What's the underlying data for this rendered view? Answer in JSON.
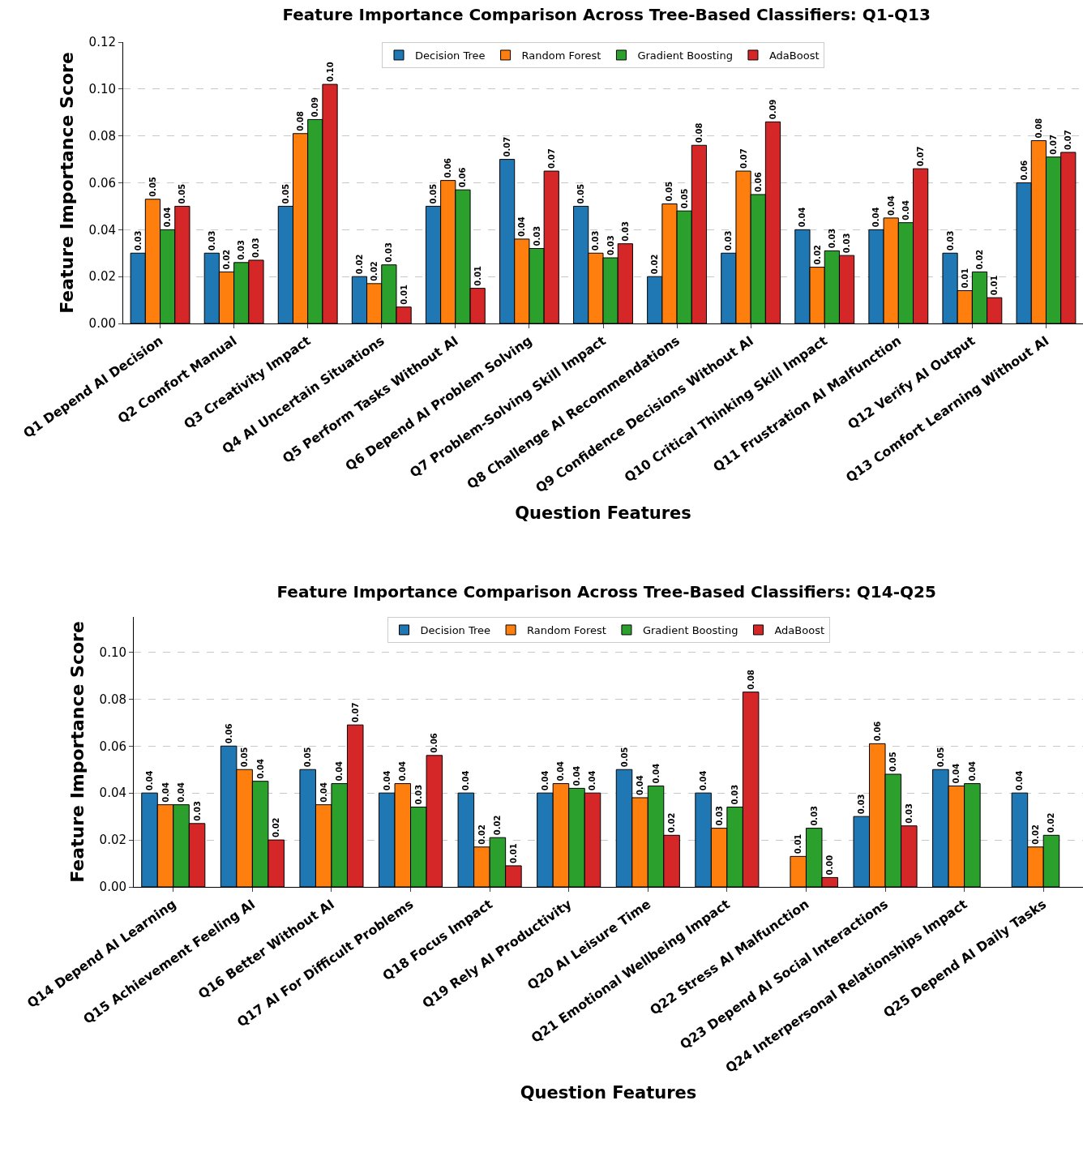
{
  "chart_data": [
    {
      "type": "bar",
      "title": "Feature Importance Comparison Across Tree-Based Classifiers: Q1-Q13",
      "xlabel": "Question Features",
      "ylabel": "Feature Importance Score",
      "categories": [
        "Q1 Depend AI Decision",
        "Q2 Comfort Manual",
        "Q3 Creativity Impact",
        "Q4 AI Uncertain Situations",
        "Q5 Perform Tasks Without AI",
        "Q6 Depend AI Problem Solving",
        "Q7 Problem-Solving Skill Impact",
        "Q8 Challenge AI Recommendations",
        "Q9 Confidence Decisions Without AI",
        "Q10 Critical Thinking Skill Impact",
        "Q11 Frustration AI Malfunction",
        "Q12 Verify AI Output",
        "Q13 Comfort Learning Without AI"
      ],
      "series": [
        {
          "name": "Decision Tree",
          "color": "#1f77b4",
          "values": [
            0.03,
            0.03,
            0.05,
            0.02,
            0.05,
            0.07,
            0.05,
            0.02,
            0.03,
            0.04,
            0.04,
            0.03,
            0.06
          ],
          "value_labels": [
            "0.03",
            "0.03",
            "0.05",
            "0.02",
            "0.05",
            "0.07",
            "0.05",
            "0.02",
            "0.03",
            "0.04",
            "0.04",
            "0.03",
            "0.06"
          ]
        },
        {
          "name": "Random Forest",
          "color": "#ff7f0e",
          "values": [
            0.053,
            0.022,
            0.081,
            0.017,
            0.061,
            0.036,
            0.03,
            0.051,
            0.065,
            0.024,
            0.045,
            0.014,
            0.078
          ],
          "value_labels": [
            "0.05",
            "0.02",
            "0.08",
            "0.02",
            "0.06",
            "0.04",
            "0.03",
            "0.05",
            "0.07",
            "0.02",
            "0.04",
            "0.01",
            "0.08"
          ]
        },
        {
          "name": "Gradient Boosting",
          "color": "#2ca02c",
          "values": [
            0.04,
            0.026,
            0.087,
            0.025,
            0.057,
            0.032,
            0.028,
            0.048,
            0.055,
            0.031,
            0.043,
            0.022,
            0.071
          ],
          "value_labels": [
            "0.04",
            "0.03",
            "0.09",
            "0.03",
            "0.06",
            "0.03",
            "0.03",
            "0.05",
            "0.06",
            "0.03",
            "0.04",
            "0.02",
            "0.07"
          ]
        },
        {
          "name": "AdaBoost",
          "color": "#d62728",
          "values": [
            0.05,
            0.027,
            0.102,
            0.007,
            0.015,
            0.065,
            0.034,
            0.076,
            0.086,
            0.029,
            0.066,
            0.011,
            0.073
          ],
          "value_labels": [
            "0.05",
            "0.03",
            "0.10",
            "0.01",
            "0.01",
            "0.07",
            "0.03",
            "0.08",
            "0.09",
            "0.03",
            "0.07",
            "0.01",
            "0.07"
          ]
        }
      ],
      "ylim": [
        0,
        0.12
      ],
      "yticks": [
        {
          "value": 0,
          "label": "0.00"
        },
        {
          "value": 0.02,
          "label": "0.02"
        },
        {
          "value": 0.04,
          "label": "0.04"
        },
        {
          "value": 0.06,
          "label": "0.06"
        },
        {
          "value": 0.08,
          "label": "0.08"
        },
        {
          "value": 0.1,
          "label": "0.10"
        },
        {
          "value": 0.12,
          "label": "0.12"
        }
      ],
      "grid": "y",
      "legend": "top"
    },
    {
      "type": "bar",
      "title": "Feature Importance Comparison Across Tree-Based Classifiers: Q14-Q25",
      "xlabel": "Question Features",
      "ylabel": "Feature Importance Score",
      "categories": [
        "Q14 Depend AI Learning",
        "Q15 Achievement Feeling AI",
        "Q16 Better Without AI",
        "Q17 AI For Difficult Problems",
        "Q18 Focus Impact",
        "Q19 Rely AI Productivity",
        "Q20 AI Leisure Time",
        "Q21 Emotional Wellbeing Impact",
        "Q22 Stress AI Malfunction",
        "Q23 Depend AI Social Interactions",
        "Q24 Interpersonal Relationships Impact",
        "Q25 Depend AI Daily Tasks"
      ],
      "series": [
        {
          "name": "Decision Tree",
          "color": "#1f77b4",
          "values": [
            0.04,
            0.06,
            0.05,
            0.04,
            0.04,
            0.04,
            0.05,
            0.04,
            null,
            0.03,
            0.05,
            0.04
          ],
          "value_labels": [
            "0.04",
            "0.06",
            "0.05",
            "0.04",
            "0.04",
            "0.04",
            "0.05",
            "0.04",
            null,
            "0.03",
            "0.05",
            "0.04"
          ]
        },
        {
          "name": "Random Forest",
          "color": "#ff7f0e",
          "values": [
            0.035,
            0.05,
            0.035,
            0.044,
            0.017,
            0.044,
            0.038,
            0.025,
            0.013,
            0.061,
            0.043,
            0.017
          ],
          "value_labels": [
            "0.04",
            "0.05",
            "0.04",
            "0.04",
            "0.02",
            "0.04",
            "0.04",
            "0.03",
            "0.01",
            "0.06",
            "0.04",
            "0.02"
          ]
        },
        {
          "name": "Gradient Boosting",
          "color": "#2ca02c",
          "values": [
            0.035,
            0.045,
            0.044,
            0.034,
            0.021,
            0.042,
            0.043,
            0.034,
            0.025,
            0.048,
            0.044,
            0.022
          ],
          "value_labels": [
            "0.04",
            "0.04",
            "0.04",
            "0.03",
            "0.02",
            "0.04",
            "0.04",
            "0.03",
            "0.03",
            "0.05",
            "0.04",
            "0.02"
          ]
        },
        {
          "name": "AdaBoost",
          "color": "#d62728",
          "values": [
            0.027,
            0.02,
            0.069,
            0.056,
            0.009,
            0.04,
            0.022,
            0.083,
            0.004,
            0.026,
            null,
            null
          ],
          "value_labels": [
            "0.03",
            "0.02",
            "0.07",
            "0.06",
            "0.01",
            "0.04",
            "0.02",
            "0.08",
            "0.00",
            "0.03",
            null,
            null
          ]
        }
      ],
      "ylim": [
        0,
        0.115
      ],
      "yticks": [
        {
          "value": 0,
          "label": "0.00"
        },
        {
          "value": 0.02,
          "label": "0.02"
        },
        {
          "value": 0.04,
          "label": "0.04"
        },
        {
          "value": 0.06,
          "label": "0.06"
        },
        {
          "value": 0.08,
          "label": "0.08"
        },
        {
          "value": 0.1,
          "label": "0.10"
        }
      ],
      "grid": "y",
      "legend": "top"
    }
  ]
}
